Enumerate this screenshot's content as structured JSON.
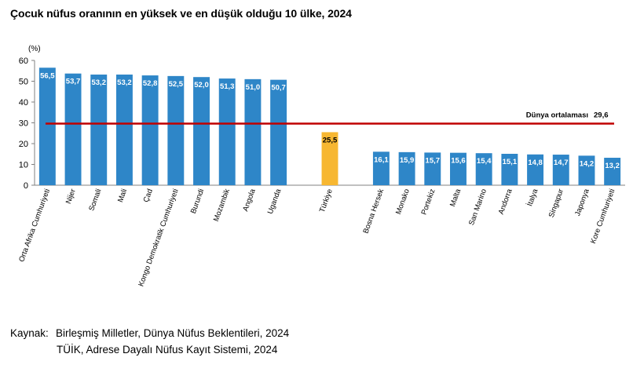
{
  "title": "Çocuk nüfus oranının en yüksek ve en düşük olduğu 10 ülke, 2024",
  "chart_data": {
    "type": "bar",
    "unit_label": "(%)",
    "ylim": [
      0,
      60
    ],
    "yticks": [
      0,
      10,
      20,
      30,
      40,
      50,
      60
    ],
    "grid": false,
    "categories": [
      "Orta Afrika Cumhuriyeti",
      "Nijer",
      "Somali",
      "Mali",
      "Çad",
      "Kongo Demokratik Cumhuriyeti",
      "Burundi",
      "Mozambik",
      "Angola",
      "Uganda",
      "Türkiye",
      "Bosna Hersek",
      "Monako",
      "Portekiz",
      "Malta",
      "San Marino",
      "Andorra",
      "İtalya",
      "Singapur",
      "Japonya",
      "Kore Cumhuriyeti"
    ],
    "values": [
      56.5,
      53.7,
      53.2,
      53.2,
      52.8,
      52.5,
      52.0,
      51.3,
      51.0,
      50.7,
      25.5,
      16.1,
      15.9,
      15.7,
      15.6,
      15.4,
      15.1,
      14.8,
      14.7,
      14.2,
      13.2
    ],
    "value_labels": [
      "56,5",
      "53,7",
      "53,2",
      "53,2",
      "52,8",
      "52,5",
      "52,0",
      "51,3",
      "51,0",
      "50,7",
      "25,5",
      "16,1",
      "15,9",
      "15,7",
      "15,6",
      "15,4",
      "15,1",
      "14,8",
      "14,7",
      "14,2",
      "13,2"
    ],
    "groups": [
      10,
      1,
      10
    ],
    "colors": {
      "bar": "#2E86C8",
      "highlight": "#F7B731",
      "reference_line": "#C00000",
      "axis": "#808080",
      "bar_label_light": "#ffffff",
      "bar_label_dark": "#000000"
    },
    "highlight_category": "Türkiye",
    "reference_line": {
      "value": 29.6,
      "label": "Dünya ortalaması",
      "value_label": "29,6"
    }
  },
  "source": {
    "label": "Kaynak:",
    "lines": [
      "Birleşmiş Milletler, Dünya Nüfus Beklentileri, 2024",
      "TÜİK, Adrese Dayalı Nüfus Kayıt Sistemi, 2024"
    ]
  }
}
